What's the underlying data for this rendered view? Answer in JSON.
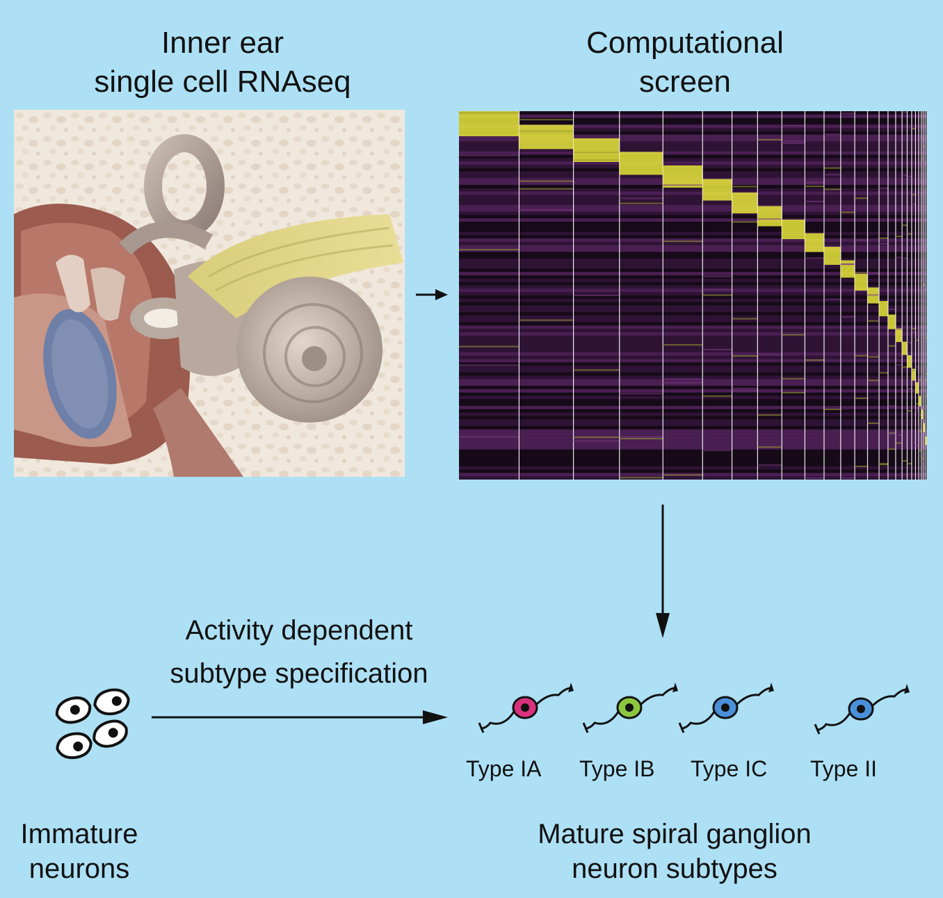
{
  "titles": {
    "left_line1": "Inner ear",
    "left_line2": "single cell RNAseq",
    "right_line1": "Computational",
    "right_line2": "screen"
  },
  "process": {
    "line1": "Activity dependent",
    "line2": "subtype specification"
  },
  "immature": {
    "line1": "Immature",
    "line2": "neurons"
  },
  "mature": {
    "line1": "Mature spiral ganglion",
    "line2": "neuron subtypes"
  },
  "subtypes": [
    {
      "label": "Type IA",
      "color": "#D8327C"
    },
    {
      "label": "Type IB",
      "color": "#8CC63F"
    },
    {
      "label": "Type IC",
      "color": "#4A8FD9"
    },
    {
      "label": "Type II",
      "color": "#4A8FD9"
    }
  ],
  "colors": {
    "background": "#ADE0F5",
    "heatmap_low": "#1a0a1c",
    "heatmap_mid": "#5a2a60",
    "heatmap_high": "#E6E63A"
  }
}
